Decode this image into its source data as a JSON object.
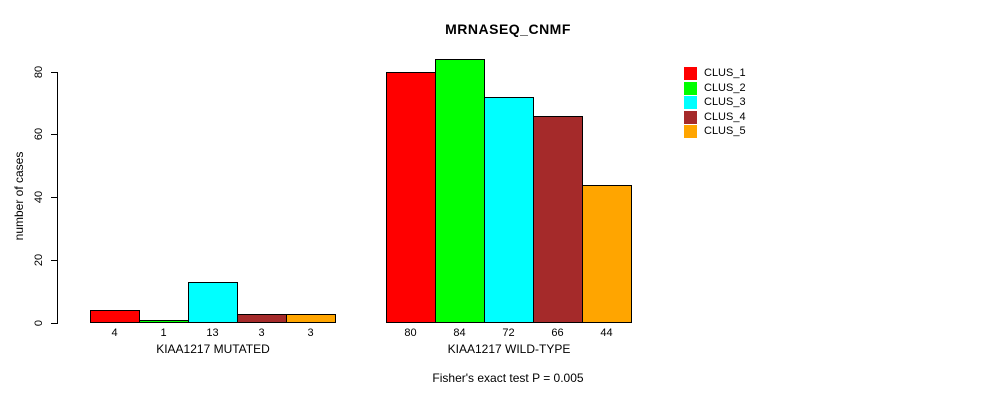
{
  "chart_data": {
    "type": "bar",
    "title": "MRNASEQ_CNMF",
    "ylabel": "number of cases",
    "xlabel": "",
    "yticks": [
      0,
      20,
      40,
      60,
      80
    ],
    "ylim": [
      0,
      80
    ],
    "grid": false,
    "legend_position": "top-right",
    "categories": [
      "KIAA1217 MUTATED",
      "KIAA1217 WILD-TYPE"
    ],
    "series": [
      {
        "name": "CLUS_1",
        "color": "#FF0000",
        "values": [
          4,
          80
        ]
      },
      {
        "name": "CLUS_2",
        "color": "#00FF00",
        "values": [
          1,
          84
        ]
      },
      {
        "name": "CLUS_3",
        "color": "#00FFFF",
        "values": [
          13,
          72
        ]
      },
      {
        "name": "CLUS_4",
        "color": "#A52A2A",
        "values": [
          3,
          66
        ]
      },
      {
        "name": "CLUS_5",
        "color": "#FFA500",
        "values": [
          3,
          44
        ]
      }
    ],
    "annotation": "Fisher's exact test P = 0.005"
  },
  "colors": {
    "background": "#FFFFFF",
    "axis": "#000000",
    "text": "#000000"
  }
}
